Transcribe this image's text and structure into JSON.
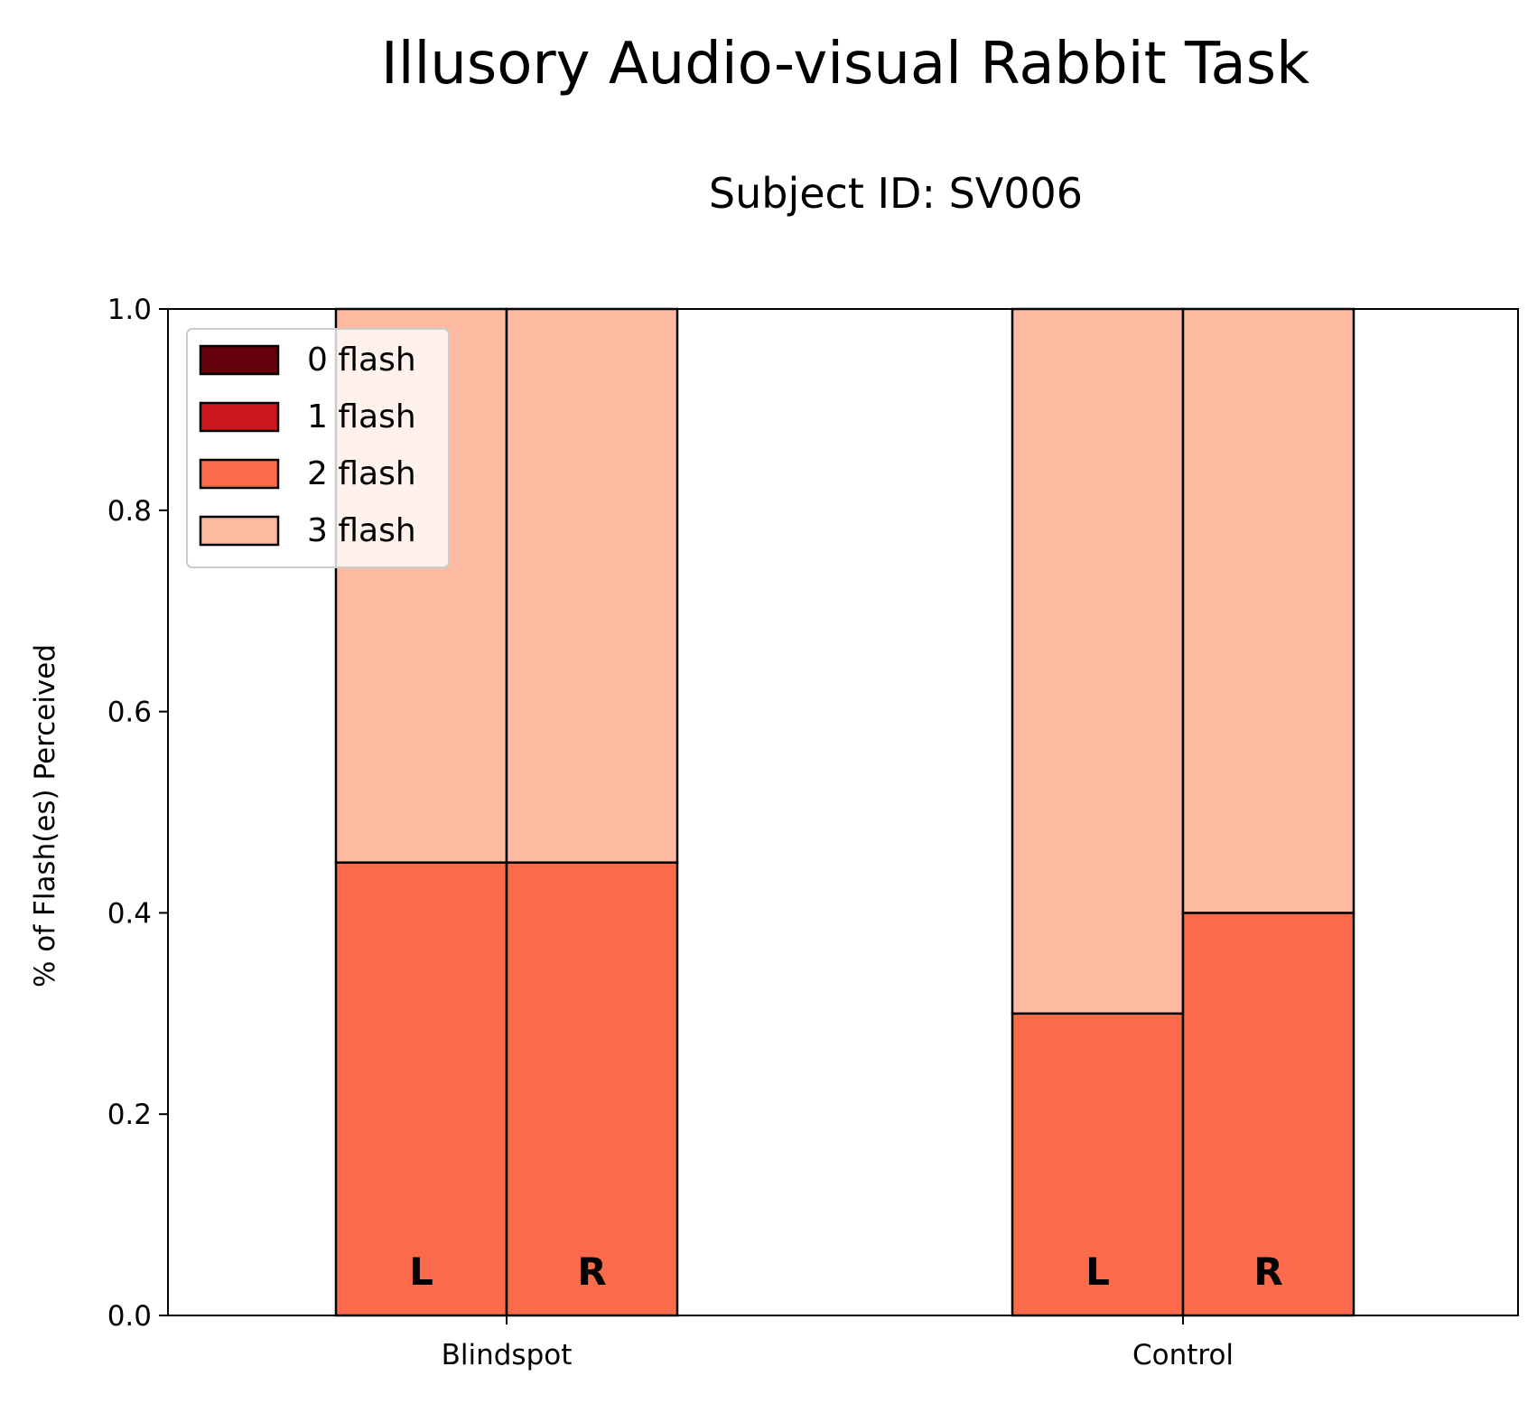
{
  "chart_data": {
    "type": "bar",
    "stacked": true,
    "title": "Illusory Audio-visual Rabbit Task",
    "subtitle": "Subject ID: SV006",
    "xlabel": "",
    "ylabel": "% of Flash(es) Perceived",
    "ylim": [
      0,
      1
    ],
    "yticks": [
      "0.0",
      "0.2",
      "0.4",
      "0.6",
      "0.8",
      "1.0"
    ],
    "categories": [
      "Blindspot",
      "Control"
    ],
    "bars": [
      {
        "group": "Blindspot",
        "side": "L",
        "values": {
          "0 flash": 0,
          "1 flash": 0,
          "2 flash": 0.45,
          "3 flash": 0.55
        }
      },
      {
        "group": "Blindspot",
        "side": "R",
        "values": {
          "0 flash": 0,
          "1 flash": 0,
          "2 flash": 0.45,
          "3 flash": 0.55
        }
      },
      {
        "group": "Control",
        "side": "L",
        "values": {
          "0 flash": 0,
          "1 flash": 0,
          "2 flash": 0.3,
          "3 flash": 0.7
        }
      },
      {
        "group": "Control",
        "side": "R",
        "values": {
          "0 flash": 0,
          "1 flash": 0,
          "2 flash": 0.4,
          "3 flash": 0.6
        }
      }
    ],
    "series": [
      {
        "name": "0 flash",
        "color": "#67000d"
      },
      {
        "name": "1 flash",
        "color": "#cb181d"
      },
      {
        "name": "2 flash",
        "color": "#fb6a4a"
      },
      {
        "name": "3 flash",
        "color": "#fcbba1"
      }
    ],
    "legend_position": "upper-left",
    "grid": false
  }
}
